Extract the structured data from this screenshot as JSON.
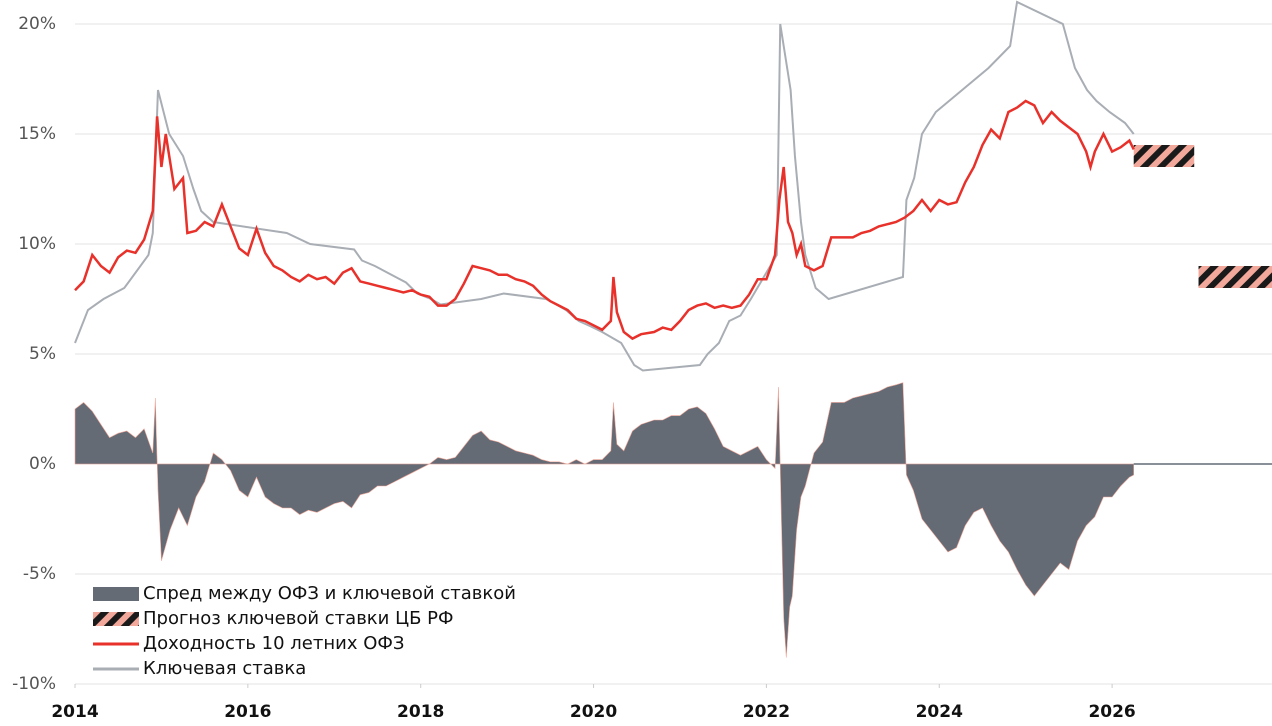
{
  "chart_data": {
    "type": "line",
    "xlim": [
      2014,
      2027.85
    ],
    "xticks": [
      2014,
      2016,
      2018,
      2020,
      2022,
      2024,
      2026
    ],
    "ylim": [
      -10,
      21
    ],
    "yticks": [
      {
        "value": -10,
        "label": "-10%"
      },
      {
        "value": -5,
        "label": "-5%"
      },
      {
        "value": 0,
        "label": "0%"
      },
      {
        "value": 5,
        "label": "5%"
      },
      {
        "value": 10,
        "label": "10%"
      },
      {
        "value": 15,
        "label": "15%"
      },
      {
        "value": 20,
        "label": "20%"
      }
    ],
    "grid": true,
    "legend": "lower left",
    "spread": {
      "name": "Спред между ОФЗ и ключевой ставкой",
      "color": "#646b75",
      "x": [
        2014.0,
        2014.1,
        2014.2,
        2014.3,
        2014.4,
        2014.5,
        2014.6,
        2014.7,
        2014.8,
        2014.9,
        2014.93,
        2014.96,
        2015.0,
        2015.1,
        2015.2,
        2015.3,
        2015.4,
        2015.5,
        2015.6,
        2015.7,
        2015.8,
        2015.9,
        2016.0,
        2016.1,
        2016.2,
        2016.3,
        2016.4,
        2016.5,
        2016.6,
        2016.7,
        2016.8,
        2016.9,
        2017.0,
        2017.1,
        2017.2,
        2017.3,
        2017.4,
        2017.5,
        2017.6,
        2017.7,
        2017.8,
        2017.9,
        2018.0,
        2018.1,
        2018.2,
        2018.3,
        2018.4,
        2018.5,
        2018.6,
        2018.7,
        2018.8,
        2018.9,
        2019.0,
        2019.1,
        2019.2,
        2019.3,
        2019.4,
        2019.5,
        2019.6,
        2019.7,
        2019.8,
        2019.9,
        2020.0,
        2020.1,
        2020.2,
        2020.23,
        2020.27,
        2020.35,
        2020.45,
        2020.55,
        2020.7,
        2020.8,
        2020.9,
        2021.0,
        2021.1,
        2021.2,
        2021.3,
        2021.4,
        2021.5,
        2021.6,
        2021.7,
        2021.8,
        2021.9,
        2022.0,
        2022.1,
        2022.14,
        2022.17,
        2022.2,
        2022.23,
        2022.27,
        2022.3,
        2022.35,
        2022.4,
        2022.45,
        2022.55,
        2022.65,
        2022.75,
        2022.9,
        2023.0,
        2023.1,
        2023.2,
        2023.3,
        2023.4,
        2023.5,
        2023.58,
        2023.62,
        2023.7,
        2023.8,
        2023.9,
        2024.0,
        2024.1,
        2024.2,
        2024.3,
        2024.4,
        2024.5,
        2024.6,
        2024.7,
        2024.8,
        2024.9,
        2025.0,
        2025.1,
        2025.2,
        2025.3,
        2025.4,
        2025.5,
        2025.6,
        2025.7,
        2025.8,
        2025.9,
        2026.0,
        2026.1,
        2026.2,
        2026.25
      ],
      "values": [
        2.5,
        2.8,
        2.4,
        1.8,
        1.2,
        1.4,
        1.5,
        1.2,
        1.6,
        0.5,
        3.0,
        -1.2,
        -4.4,
        -3.0,
        -2.0,
        -2.8,
        -1.5,
        -0.8,
        0.5,
        0.2,
        -0.3,
        -1.2,
        -1.5,
        -0.6,
        -1.5,
        -1.8,
        -2.0,
        -2.0,
        -2.3,
        -2.1,
        -2.2,
        -2.0,
        -1.8,
        -1.7,
        -2.0,
        -1.4,
        -1.3,
        -1.0,
        -1.0,
        -0.8,
        -0.6,
        -0.4,
        -0.2,
        0.0,
        0.3,
        0.2,
        0.3,
        0.8,
        1.3,
        1.5,
        1.1,
        1.0,
        0.8,
        0.6,
        0.5,
        0.4,
        0.2,
        0.1,
        0.1,
        0.0,
        0.2,
        0.0,
        0.2,
        0.2,
        0.6,
        2.8,
        0.9,
        0.6,
        1.5,
        1.8,
        2.0,
        2.0,
        2.2,
        2.2,
        2.5,
        2.6,
        2.3,
        1.6,
        0.8,
        0.6,
        0.4,
        0.6,
        0.8,
        0.2,
        -0.2,
        3.5,
        -2.0,
        -7.0,
        -8.8,
        -6.5,
        -6.0,
        -3.0,
        -1.5,
        -1.0,
        0.5,
        1.0,
        2.8,
        2.8,
        3.0,
        3.1,
        3.2,
        3.3,
        3.5,
        3.6,
        3.7,
        -0.5,
        -1.2,
        -2.5,
        -3.0,
        -3.5,
        -4.0,
        -3.8,
        -2.8,
        -2.2,
        -2.0,
        -2.8,
        -3.5,
        -4.0,
        -4.8,
        -5.5,
        -6.0,
        -5.5,
        -5.0,
        -4.5,
        -4.8,
        -3.5,
        -2.8,
        -2.4,
        -1.5,
        -1.5,
        -1.0,
        -0.6,
        -0.5
      ]
    },
    "forecast": {
      "name": "Прогноз ключевой ставки ЦБ РФ",
      "colors": [
        "#1a1a1a",
        "#f2a89a"
      ],
      "boxes": [
        {
          "x0": 2026.25,
          "x1": 2026.95,
          "low": 13.5,
          "high": 14.5
        },
        {
          "x0": 2027.0,
          "x1": 2027.85,
          "low": 8.0,
          "high": 9.0
        }
      ]
    },
    "series": [
      {
        "name": "Доходность 10 летних ОФЗ",
        "color": "#e8312a",
        "x": [
          2014.0,
          2014.1,
          2014.2,
          2014.3,
          2014.4,
          2014.5,
          2014.6,
          2014.7,
          2014.8,
          2014.9,
          2014.95,
          2015.0,
          2015.05,
          2015.15,
          2015.25,
          2015.3,
          2015.4,
          2015.5,
          2015.6,
          2015.7,
          2015.8,
          2015.9,
          2016.0,
          2016.1,
          2016.2,
          2016.3,
          2016.4,
          2016.5,
          2016.6,
          2016.7,
          2016.8,
          2016.9,
          2017.0,
          2017.1,
          2017.2,
          2017.3,
          2017.4,
          2017.5,
          2017.6,
          2017.7,
          2017.8,
          2017.9,
          2018.0,
          2018.1,
          2018.2,
          2018.3,
          2018.4,
          2018.5,
          2018.6,
          2018.7,
          2018.8,
          2018.9,
          2019.0,
          2019.1,
          2019.2,
          2019.3,
          2019.4,
          2019.5,
          2019.6,
          2019.7,
          2019.8,
          2019.9,
          2020.0,
          2020.1,
          2020.2,
          2020.23,
          2020.27,
          2020.35,
          2020.45,
          2020.55,
          2020.7,
          2020.8,
          2020.9,
          2021.0,
          2021.1,
          2021.2,
          2021.3,
          2021.4,
          2021.5,
          2021.6,
          2021.7,
          2021.8,
          2021.9,
          2022.0,
          2022.1,
          2022.15,
          2022.2,
          2022.25,
          2022.3,
          2022.35,
          2022.4,
          2022.45,
          2022.55,
          2022.65,
          2022.75,
          2022.9,
          2023.0,
          2023.1,
          2023.2,
          2023.3,
          2023.4,
          2023.5,
          2023.6,
          2023.7,
          2023.8,
          2023.9,
          2024.0,
          2024.1,
          2024.2,
          2024.3,
          2024.4,
          2024.5,
          2024.6,
          2024.7,
          2024.8,
          2024.9,
          2025.0,
          2025.1,
          2025.2,
          2025.3,
          2025.4,
          2025.5,
          2025.6,
          2025.7,
          2025.75,
          2025.8,
          2025.9,
          2026.0,
          2026.1,
          2026.2,
          2026.25
        ],
        "values": [
          7.9,
          8.3,
          9.5,
          9.0,
          8.7,
          9.4,
          9.7,
          9.6,
          10.2,
          11.5,
          15.8,
          13.5,
          15.0,
          12.5,
          13.0,
          10.5,
          10.6,
          11.0,
          10.8,
          11.8,
          10.8,
          9.8,
          9.5,
          10.7,
          9.6,
          9.0,
          8.8,
          8.5,
          8.3,
          8.6,
          8.4,
          8.5,
          8.2,
          8.7,
          8.9,
          8.3,
          8.2,
          8.1,
          8.0,
          7.9,
          7.8,
          7.9,
          7.7,
          7.6,
          7.2,
          7.2,
          7.5,
          8.2,
          9.0,
          8.9,
          8.8,
          8.6,
          8.6,
          8.4,
          8.3,
          8.1,
          7.7,
          7.4,
          7.2,
          7.0,
          6.6,
          6.5,
          6.3,
          6.1,
          6.5,
          8.5,
          6.9,
          6.0,
          5.7,
          5.9,
          6.0,
          6.2,
          6.1,
          6.5,
          7.0,
          7.2,
          7.3,
          7.1,
          7.2,
          7.1,
          7.2,
          7.7,
          8.4,
          8.4,
          9.5,
          12.0,
          13.5,
          11.0,
          10.5,
          9.5,
          10.0,
          9.0,
          8.8,
          9.0,
          10.3,
          10.3,
          10.3,
          10.5,
          10.6,
          10.8,
          10.9,
          11.0,
          11.2,
          11.5,
          12.0,
          11.5,
          12.0,
          11.8,
          11.9,
          12.8,
          13.5,
          14.5,
          15.2,
          14.8,
          16.0,
          16.2,
          16.5,
          16.3,
          15.5,
          16.0,
          15.6,
          15.3,
          15.0,
          14.2,
          13.5,
          14.2,
          15.0,
          14.2,
          14.4,
          14.7,
          14.3
        ]
      },
      {
        "name": "Ключевая ставка",
        "color": "#a9aeb5",
        "x": [
          2014.0,
          2014.15,
          2014.33,
          2014.57,
          2014.85,
          2014.9,
          2014.96,
          2015.09,
          2015.25,
          2015.37,
          2015.46,
          2015.6,
          2016.45,
          2016.72,
          2017.23,
          2017.32,
          2017.47,
          2017.71,
          2017.83,
          2017.96,
          2018.12,
          2018.23,
          2018.7,
          2018.96,
          2019.45,
          2019.57,
          2019.68,
          2019.83,
          2019.97,
          2020.1,
          2020.32,
          2020.47,
          2020.57,
          2021.23,
          2021.32,
          2021.45,
          2021.57,
          2021.7,
          2021.82,
          2021.97,
          2022.12,
          2022.16,
          2022.28,
          2022.33,
          2022.4,
          2022.45,
          2022.57,
          2022.72,
          2023.58,
          2023.62,
          2023.71,
          2023.8,
          2023.96,
          2024.57,
          2024.82,
          2024.9,
          2025.43,
          2025.57,
          2025.71,
          2025.82,
          2025.97,
          2026.15,
          2026.25
        ],
        "values": [
          5.5,
          7.0,
          7.5,
          8.0,
          9.5,
          10.5,
          17.0,
          15.0,
          14.0,
          12.5,
          11.5,
          11.0,
          10.5,
          10.0,
          9.75,
          9.25,
          9.0,
          8.5,
          8.25,
          7.75,
          7.5,
          7.25,
          7.5,
          7.75,
          7.5,
          7.25,
          7.0,
          6.5,
          6.25,
          6.0,
          5.5,
          4.5,
          4.25,
          4.5,
          5.0,
          5.5,
          6.5,
          6.75,
          7.5,
          8.5,
          9.5,
          20.0,
          17.0,
          14.0,
          11.0,
          9.5,
          8.0,
          7.5,
          8.5,
          12.0,
          13.0,
          15.0,
          16.0,
          18.0,
          19.0,
          21.0,
          20.0,
          18.0,
          17.0,
          16.5,
          16.0,
          15.5,
          15.0
        ]
      }
    ]
  }
}
